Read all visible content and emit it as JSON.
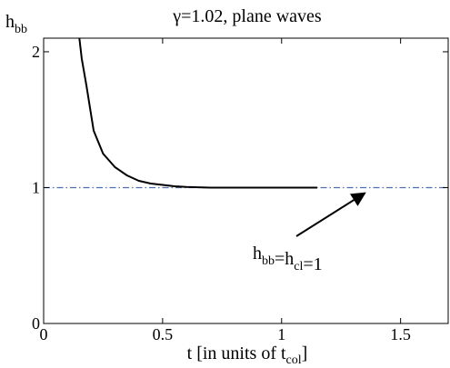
{
  "chart_data": {
    "type": "line",
    "title": "γ=1.02, plane waves",
    "ylabel": {
      "base": "h",
      "sub": "bb"
    },
    "xlabel": {
      "pre": "t [in units of t",
      "sub": "col",
      "post": "]"
    },
    "xlim": [
      0,
      1.7
    ],
    "ylim": [
      0,
      2.1
    ],
    "x_ticks": [
      {
        "value": 0,
        "label": "0"
      },
      {
        "value": 0.5,
        "label": "0.5"
      },
      {
        "value": 1,
        "label": "1"
      },
      {
        "value": 1.5,
        "label": "1.5"
      }
    ],
    "y_ticks": [
      {
        "value": 0,
        "label": "0"
      },
      {
        "value": 1,
        "label": "1"
      },
      {
        "value": 2,
        "label": "2"
      }
    ],
    "grid": false,
    "series": [
      {
        "style": "solid",
        "color": "#000000",
        "x": [
          0.15,
          0.16,
          0.18,
          0.21,
          0.25,
          0.3,
          0.35,
          0.4,
          0.45,
          0.5,
          0.55,
          0.6,
          0.7,
          0.8,
          1.0,
          1.15
        ],
        "y": [
          2.1,
          1.95,
          1.75,
          1.42,
          1.25,
          1.15,
          1.09,
          1.05,
          1.03,
          1.02,
          1.01,
          1.005,
          1.0,
          1.0,
          1.0,
          1.0
        ]
      }
    ],
    "reference_line": {
      "y": 1,
      "style": "dash-dot",
      "color": "#4a6fb3"
    },
    "annotation": {
      "parts": [
        {
          "text": "h",
          "sub": "bb"
        },
        {
          "text": "=h",
          "sub": "cl"
        },
        {
          "text": "=1",
          "sub": ""
        }
      ],
      "arrow_to": {
        "x": 1.35,
        "y": 0.96
      }
    }
  }
}
